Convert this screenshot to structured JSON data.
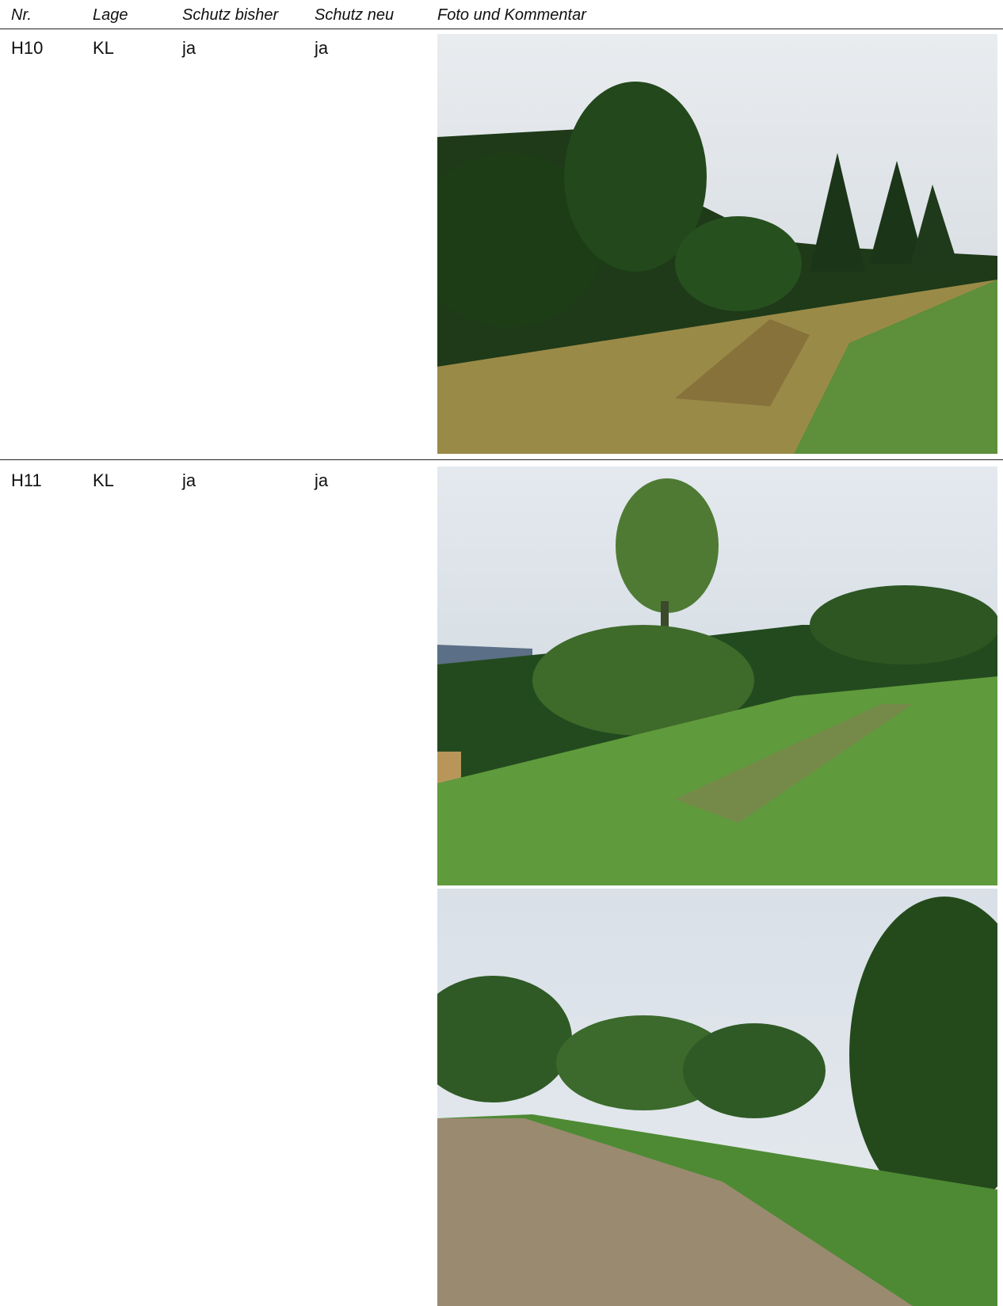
{
  "table": {
    "header": [
      "Nr.",
      "Lage",
      "Schutz bisher",
      "Schutz neu",
      "Foto und Kommentar"
    ],
    "rows": [
      [
        "H10",
        "KL",
        "ja",
        "ja"
      ],
      [
        "H11",
        "KL",
        "ja",
        "ja"
      ]
    ]
  }
}
